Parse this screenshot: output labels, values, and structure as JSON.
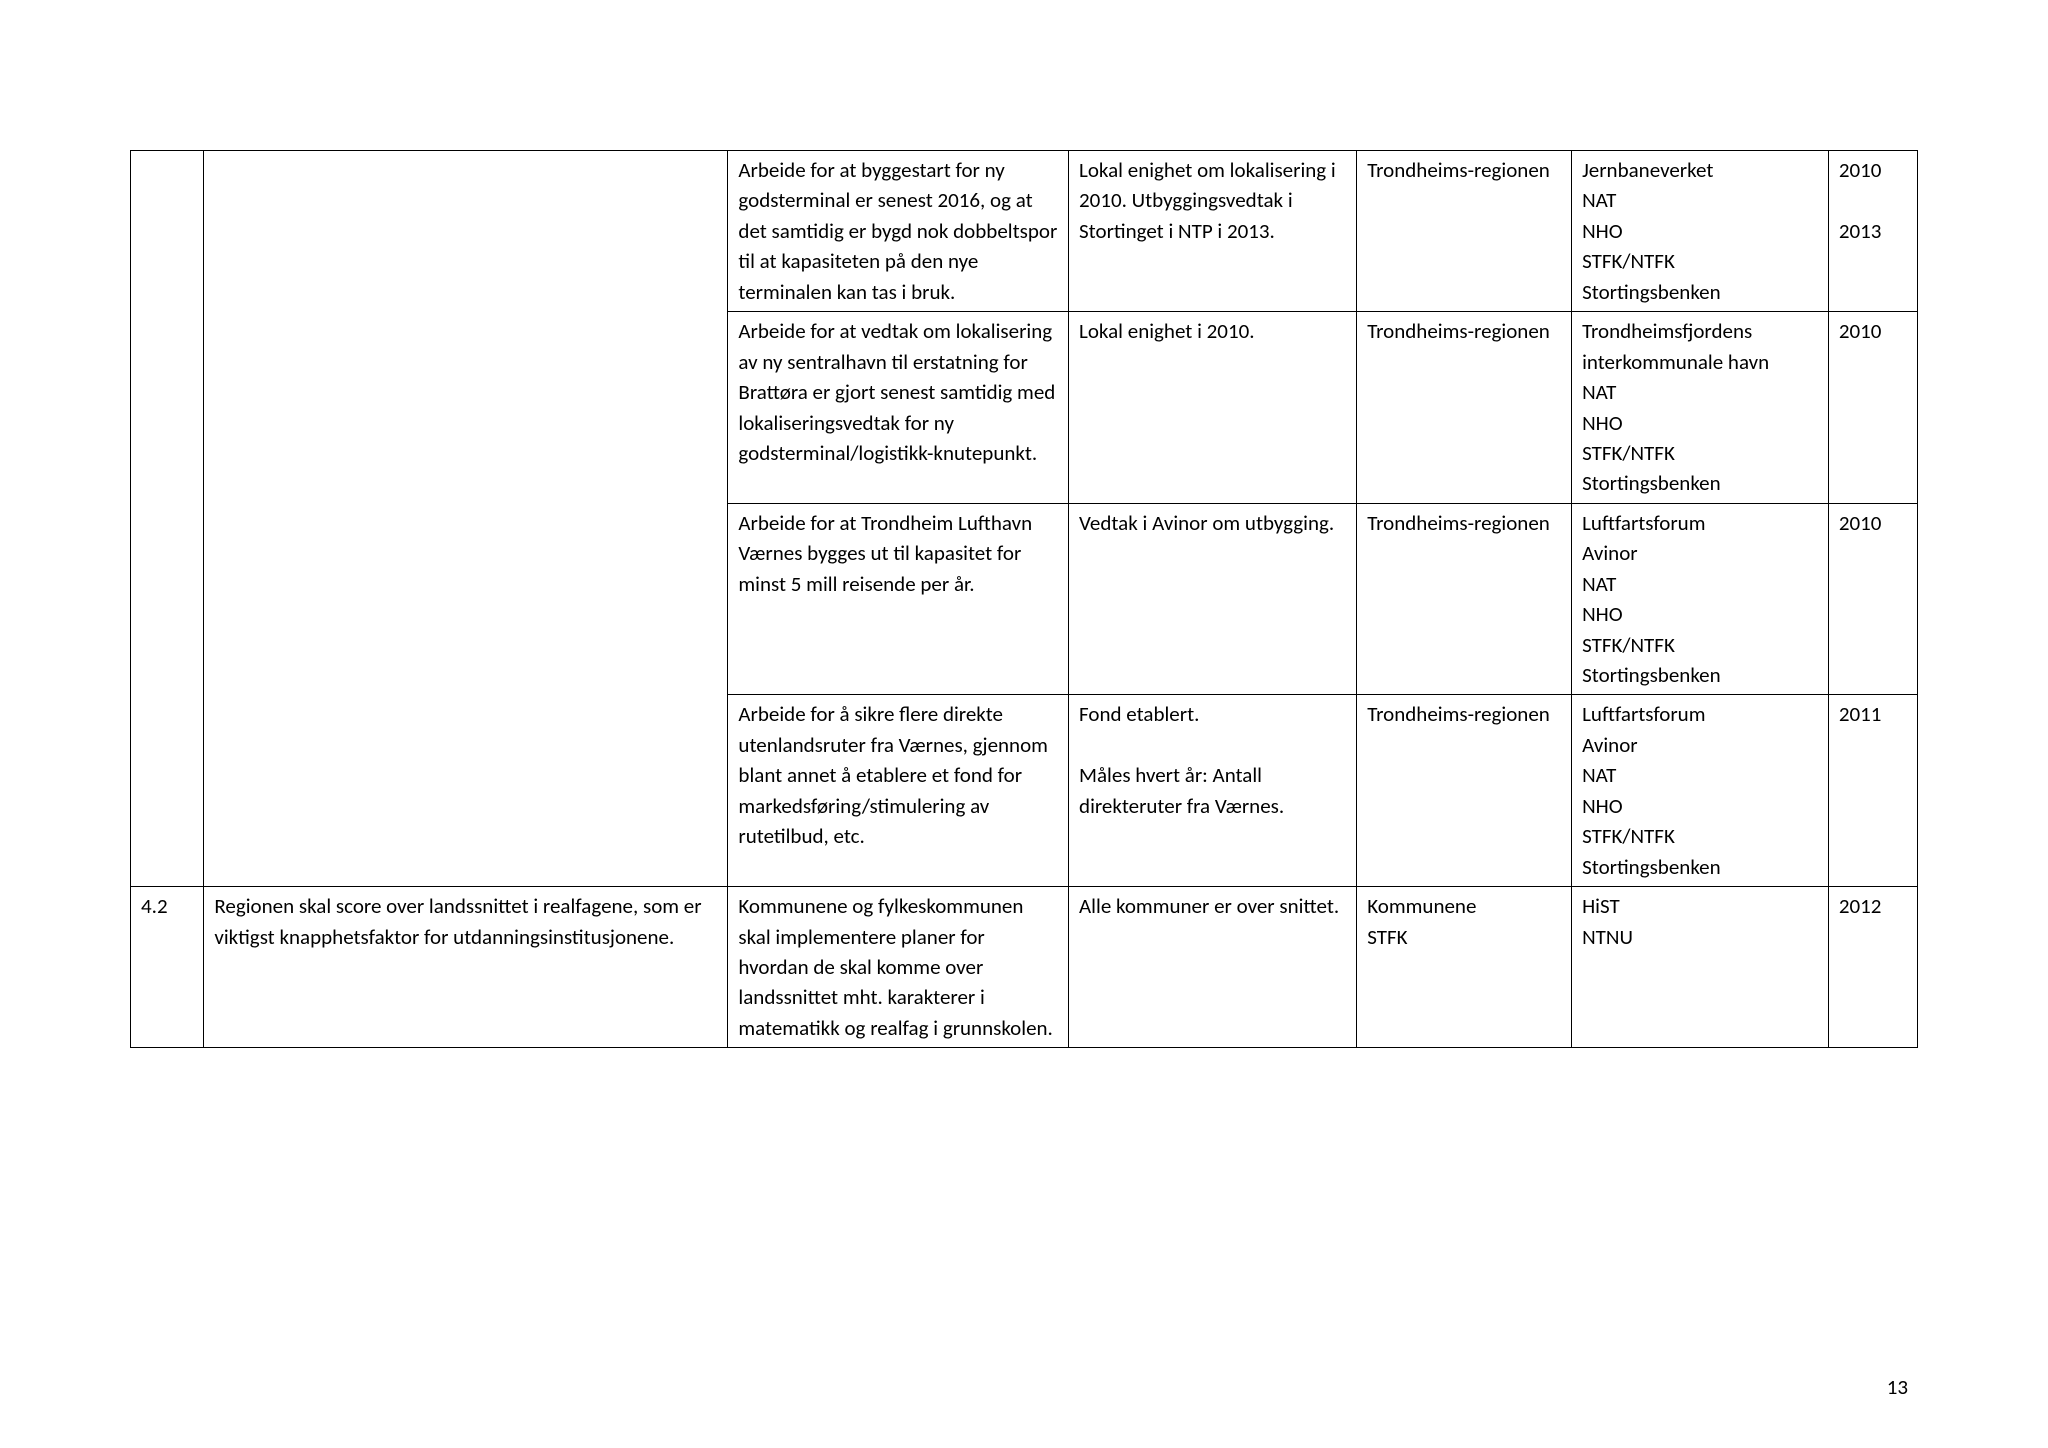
{
  "page_number": "13",
  "rows": [
    {
      "id": "",
      "goal": "",
      "action": "Arbeide for at byggestart for ny godsterminal er senest 2016, og at det samtidig er bygd nok dobbeltspor til at kapasiteten på den nye terminalen kan tas i bruk.",
      "indicator": "Lokal enighet om lokalisering i 2010. Utbyggingsvedtak i Stortinget i NTP i 2013.",
      "owner": "Trondheims-regionen",
      "partners": "Jernbaneverket\nNAT\nNHO\nSTFK/NTFK\nStortingsbenken",
      "years": "2010\n\n2013"
    },
    {
      "id": "",
      "goal": "",
      "action": "Arbeide for at vedtak om lokalisering av ny sentralhavn til erstatning for Brattøra er gjort senest samtidig med lokaliseringsvedtak for ny godsterminal/logistikk-knutepunkt.",
      "indicator": "Lokal enighet i 2010.",
      "owner": "Trondheims-regionen",
      "partners": "Trondheimsfjordens interkommunale havn\nNAT\nNHO\nSTFK/NTFK\nStortingsbenken",
      "years": "2010"
    },
    {
      "id": "",
      "goal": "",
      "action": "Arbeide for at Trondheim Lufthavn Værnes bygges ut til kapasitet for minst 5 mill reisende per år.",
      "indicator": "Vedtak i Avinor om utbygging.",
      "owner": "Trondheims-regionen",
      "partners": "Luftfartsforum\nAvinor\nNAT\nNHO\nSTFK/NTFK\nStortingsbenken",
      "years": "2010"
    },
    {
      "id": "",
      "goal": "",
      "action": "Arbeide for å sikre flere direkte utenlandsruter fra Værnes, gjennom blant annet å etablere et fond for markedsføring/stimulering av rutetilbud, etc.",
      "indicator": "Fond etablert.\n\nMåles hvert år: Antall direkteruter fra Værnes.",
      "owner": "Trondheims-regionen",
      "partners": "Luftfartsforum\nAvinor\nNAT\nNHO\nSTFK/NTFK\nStortingsbenken",
      "years": "2011"
    },
    {
      "id": "4.2",
      "goal": "Regionen skal score over landssnittet i realfagene, som er viktigst knapphetsfaktor for utdanningsinstitusjonene.",
      "action": "Kommunene og fylkeskommunen skal implementere planer for hvordan de skal komme over landssnittet mht. karakterer i matematikk og realfag i grunnskolen.",
      "indicator": "Alle kommuner er over snittet.",
      "owner": "Kommunene\nSTFK",
      "partners": "HiST\nNTNU",
      "years": "2012"
    }
  ]
}
